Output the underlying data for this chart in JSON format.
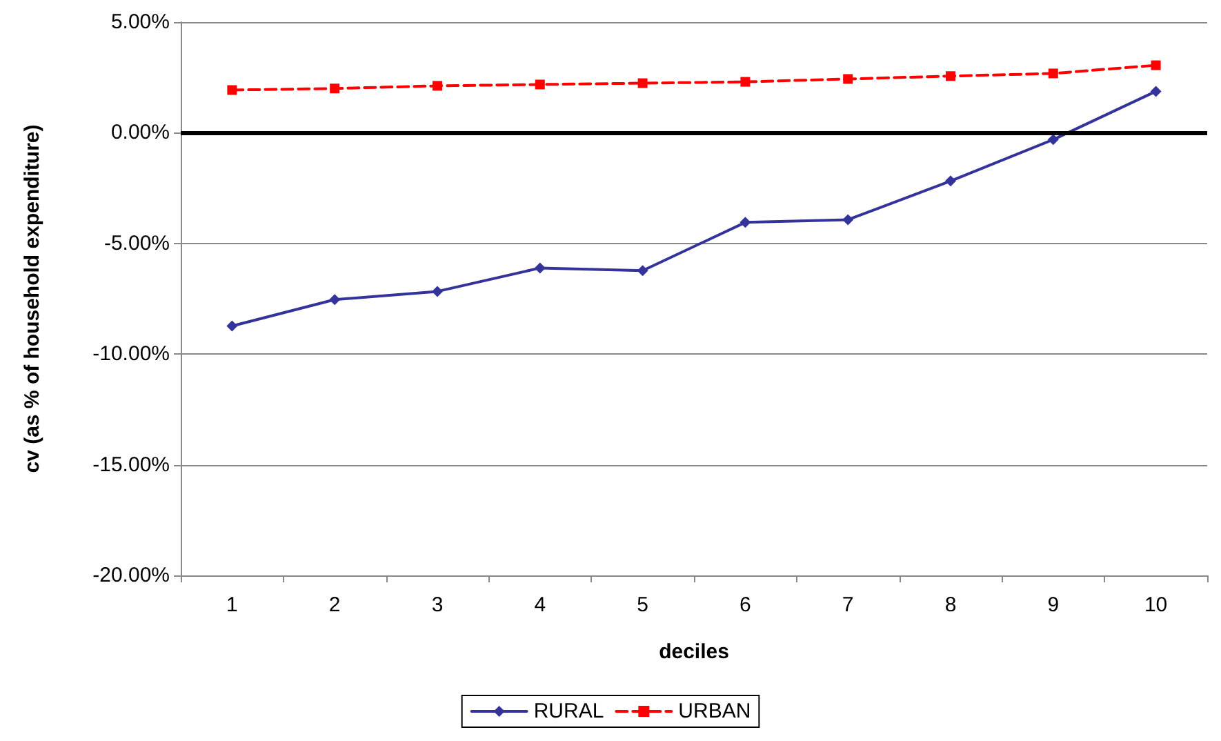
{
  "chart_data": {
    "type": "line",
    "xlabel": "deciles",
    "ylabel": "cv (as % of household expenditure)",
    "categories": [
      "1",
      "2",
      "3",
      "4",
      "5",
      "6",
      "7",
      "8",
      "9",
      "10"
    ],
    "series": [
      {
        "name": "RURAL",
        "color": "#333399",
        "marker": "diamond",
        "line_style": "solid",
        "values": [
          -8.73,
          -7.54,
          -7.17,
          -6.11,
          -6.23,
          -4.05,
          -3.93,
          -2.18,
          -0.31,
          1.87
        ]
      },
      {
        "name": "URBAN",
        "color": "#ff0000",
        "marker": "square",
        "line_style": "dashed",
        "values": [
          1.93,
          2.0,
          2.12,
          2.18,
          2.24,
          2.3,
          2.43,
          2.56,
          2.68,
          3.05
        ]
      }
    ],
    "ylim": [
      -20,
      5
    ],
    "yticks": [
      {
        "value": -20,
        "label": "-20.00%"
      },
      {
        "value": -15,
        "label": "-15.00%"
      },
      {
        "value": -10,
        "label": "-10.00%"
      },
      {
        "value": -5,
        "label": "-5.00%"
      },
      {
        "value": 0,
        "label": "0.00%"
      },
      {
        "value": 5,
        "label": "5.00%"
      }
    ],
    "ref_lines": [
      {
        "axis": "y",
        "value": 0,
        "color": "#000000"
      }
    ],
    "grid": "y",
    "legend": "bottom"
  }
}
